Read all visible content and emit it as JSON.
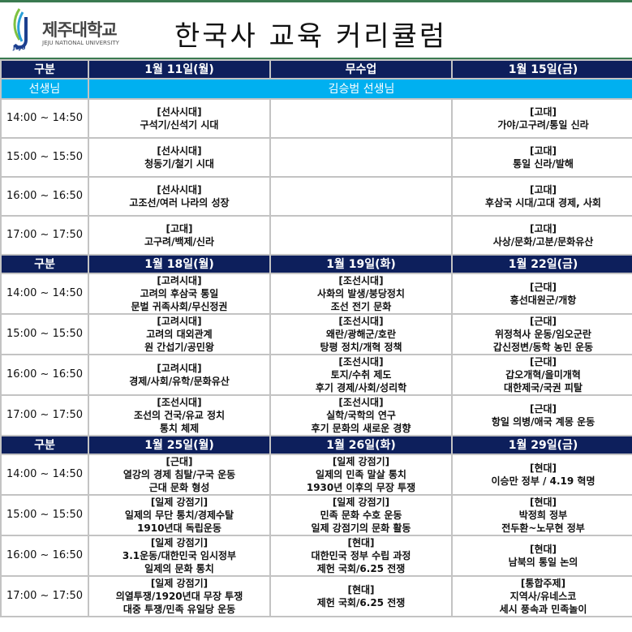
{
  "header": {
    "logo": {
      "name": "제주대학교",
      "sub": "JEJU NATIONAL UNIVERSITY",
      "mark_text": "JEJU"
    },
    "title": "한국사 교육 커리큘럼"
  },
  "colors": {
    "navy": "#0d1f5c",
    "light_blue": "#00b0f0",
    "green_border": "#3a7a50"
  },
  "teacher_row": {
    "label": "선생님",
    "name": "김승범 선생님"
  },
  "weeks": [
    {
      "label": "구분",
      "days": [
        "1월 11일(월)",
        "무수업",
        "1월 15일(금)"
      ],
      "slots": [
        {
          "time": "14:00 ~ 14:50",
          "cells": [
            [
              "[선사시대]",
              "구석기/신석기 시대"
            ],
            [],
            [
              "[고대]",
              "가야/고구려/통일 신라"
            ]
          ]
        },
        {
          "time": "15:00 ~ 15:50",
          "cells": [
            [
              "[선사시대]",
              "청동기/철기 시대"
            ],
            [],
            [
              "[고대]",
              "통일 신라/발해"
            ]
          ]
        },
        {
          "time": "16:00 ~ 16:50",
          "cells": [
            [
              "[선사시대]",
              "고조선/여러 나라의 성장"
            ],
            [],
            [
              "[고대]",
              "후삼국 시대/고대 경제, 사회"
            ]
          ]
        },
        {
          "time": "17:00 ~ 17:50",
          "cells": [
            [
              "[고대]",
              "고구려/백제/신라"
            ],
            [],
            [
              "[고대]",
              "사상/문화/고분/문화유산"
            ]
          ]
        }
      ]
    },
    {
      "label": "구분",
      "days": [
        "1월 18일(월)",
        "1월 19일(화)",
        "1월 22일(금)"
      ],
      "slots": [
        {
          "time": "14:00 ~ 14:50",
          "cells": [
            [
              "[고려시대]",
              "고려의 후삼국 통일",
              "문벌 귀족사회/무신정권"
            ],
            [
              "[조선시대]",
              "사화의 발생/붕당정치",
              "조선 전기 문화"
            ],
            [
              "[근대]",
              "흥선대원군/개항"
            ]
          ]
        },
        {
          "time": "15:00 ~ 15:50",
          "cells": [
            [
              "[고려시대]",
              "고려의 대외관계",
              "원 간섭기/공민왕"
            ],
            [
              "[조선시대]",
              "왜란/광해군/호란",
              "탕평 정치/개혁 정책"
            ],
            [
              "[근대]",
              "위정척사 운동/임오군란",
              "갑신정변/동학 농민 운동"
            ]
          ]
        },
        {
          "time": "16:00 ~ 16:50",
          "cells": [
            [
              "[고려시대]",
              "경제/사회/유학/문화유산"
            ],
            [
              "[조선시대]",
              "토지/수취 제도",
              "후기 경제/사회/성리학"
            ],
            [
              "[근대]",
              "갑오개혁/을미개혁",
              "대한제국/국권 피탈"
            ]
          ]
        },
        {
          "time": "17:00 ~ 17:50",
          "cells": [
            [
              "[조선시대]",
              "조선의 건국/유교 정치",
              "통치 체제"
            ],
            [
              "[조선시대]",
              "실학/국학의 연구",
              "후기 문화의 새로운 경향"
            ],
            [
              "[근대]",
              "항일 의병/애국 계몽 운동"
            ]
          ]
        }
      ]
    },
    {
      "label": "구분",
      "days": [
        "1월 25일(월)",
        "1월 26일(화)",
        "1월 29일(금)"
      ],
      "slots": [
        {
          "time": "14:00 ~ 14:50",
          "cells": [
            [
              "[근대]",
              "열강의 경제 침탈/구국 운동",
              "근대 문화 형성"
            ],
            [
              "[일제 강점기]",
              "일제의 민족 말살 통치",
              "1930년 이후의 무장 투쟁"
            ],
            [
              "[현대]",
              "이승만 정부 / 4.19 혁명"
            ]
          ]
        },
        {
          "time": "15:00 ~ 15:50",
          "cells": [
            [
              "[일제 강점기]",
              "일제의 무단 통치/경제수탈",
              "1910년대 독립운동"
            ],
            [
              "[일제 강점기]",
              "민족 문화 수호 운동",
              "일제 강점기의 문화 활동"
            ],
            [
              "[현대]",
              "박정희 정부",
              "전두환~노무현 정부"
            ]
          ]
        },
        {
          "time": "16:00 ~ 16:50",
          "cells": [
            [
              "[일제 강점기]",
              "3.1운동/대한민국 임시정부",
              "일제의 문화 통치"
            ],
            [
              "[현대]",
              "대한민국 정부 수립 과정",
              "제헌 국회/6.25 전쟁"
            ],
            [
              "[현대]",
              "남북의 통일 논의"
            ]
          ]
        },
        {
          "time": "17:00 ~ 17:50",
          "cells": [
            [
              "[일제 강점기]",
              "의열투쟁/1920년대 무장 투쟁",
              "대중 투쟁/민족 유일당 운동"
            ],
            [
              "[현대]",
              "제헌 국회/6.25 전쟁"
            ],
            [
              "[통합주제]",
              "지역사/유네스코",
              "세시 풍속과 민족놀이"
            ]
          ]
        }
      ]
    }
  ]
}
